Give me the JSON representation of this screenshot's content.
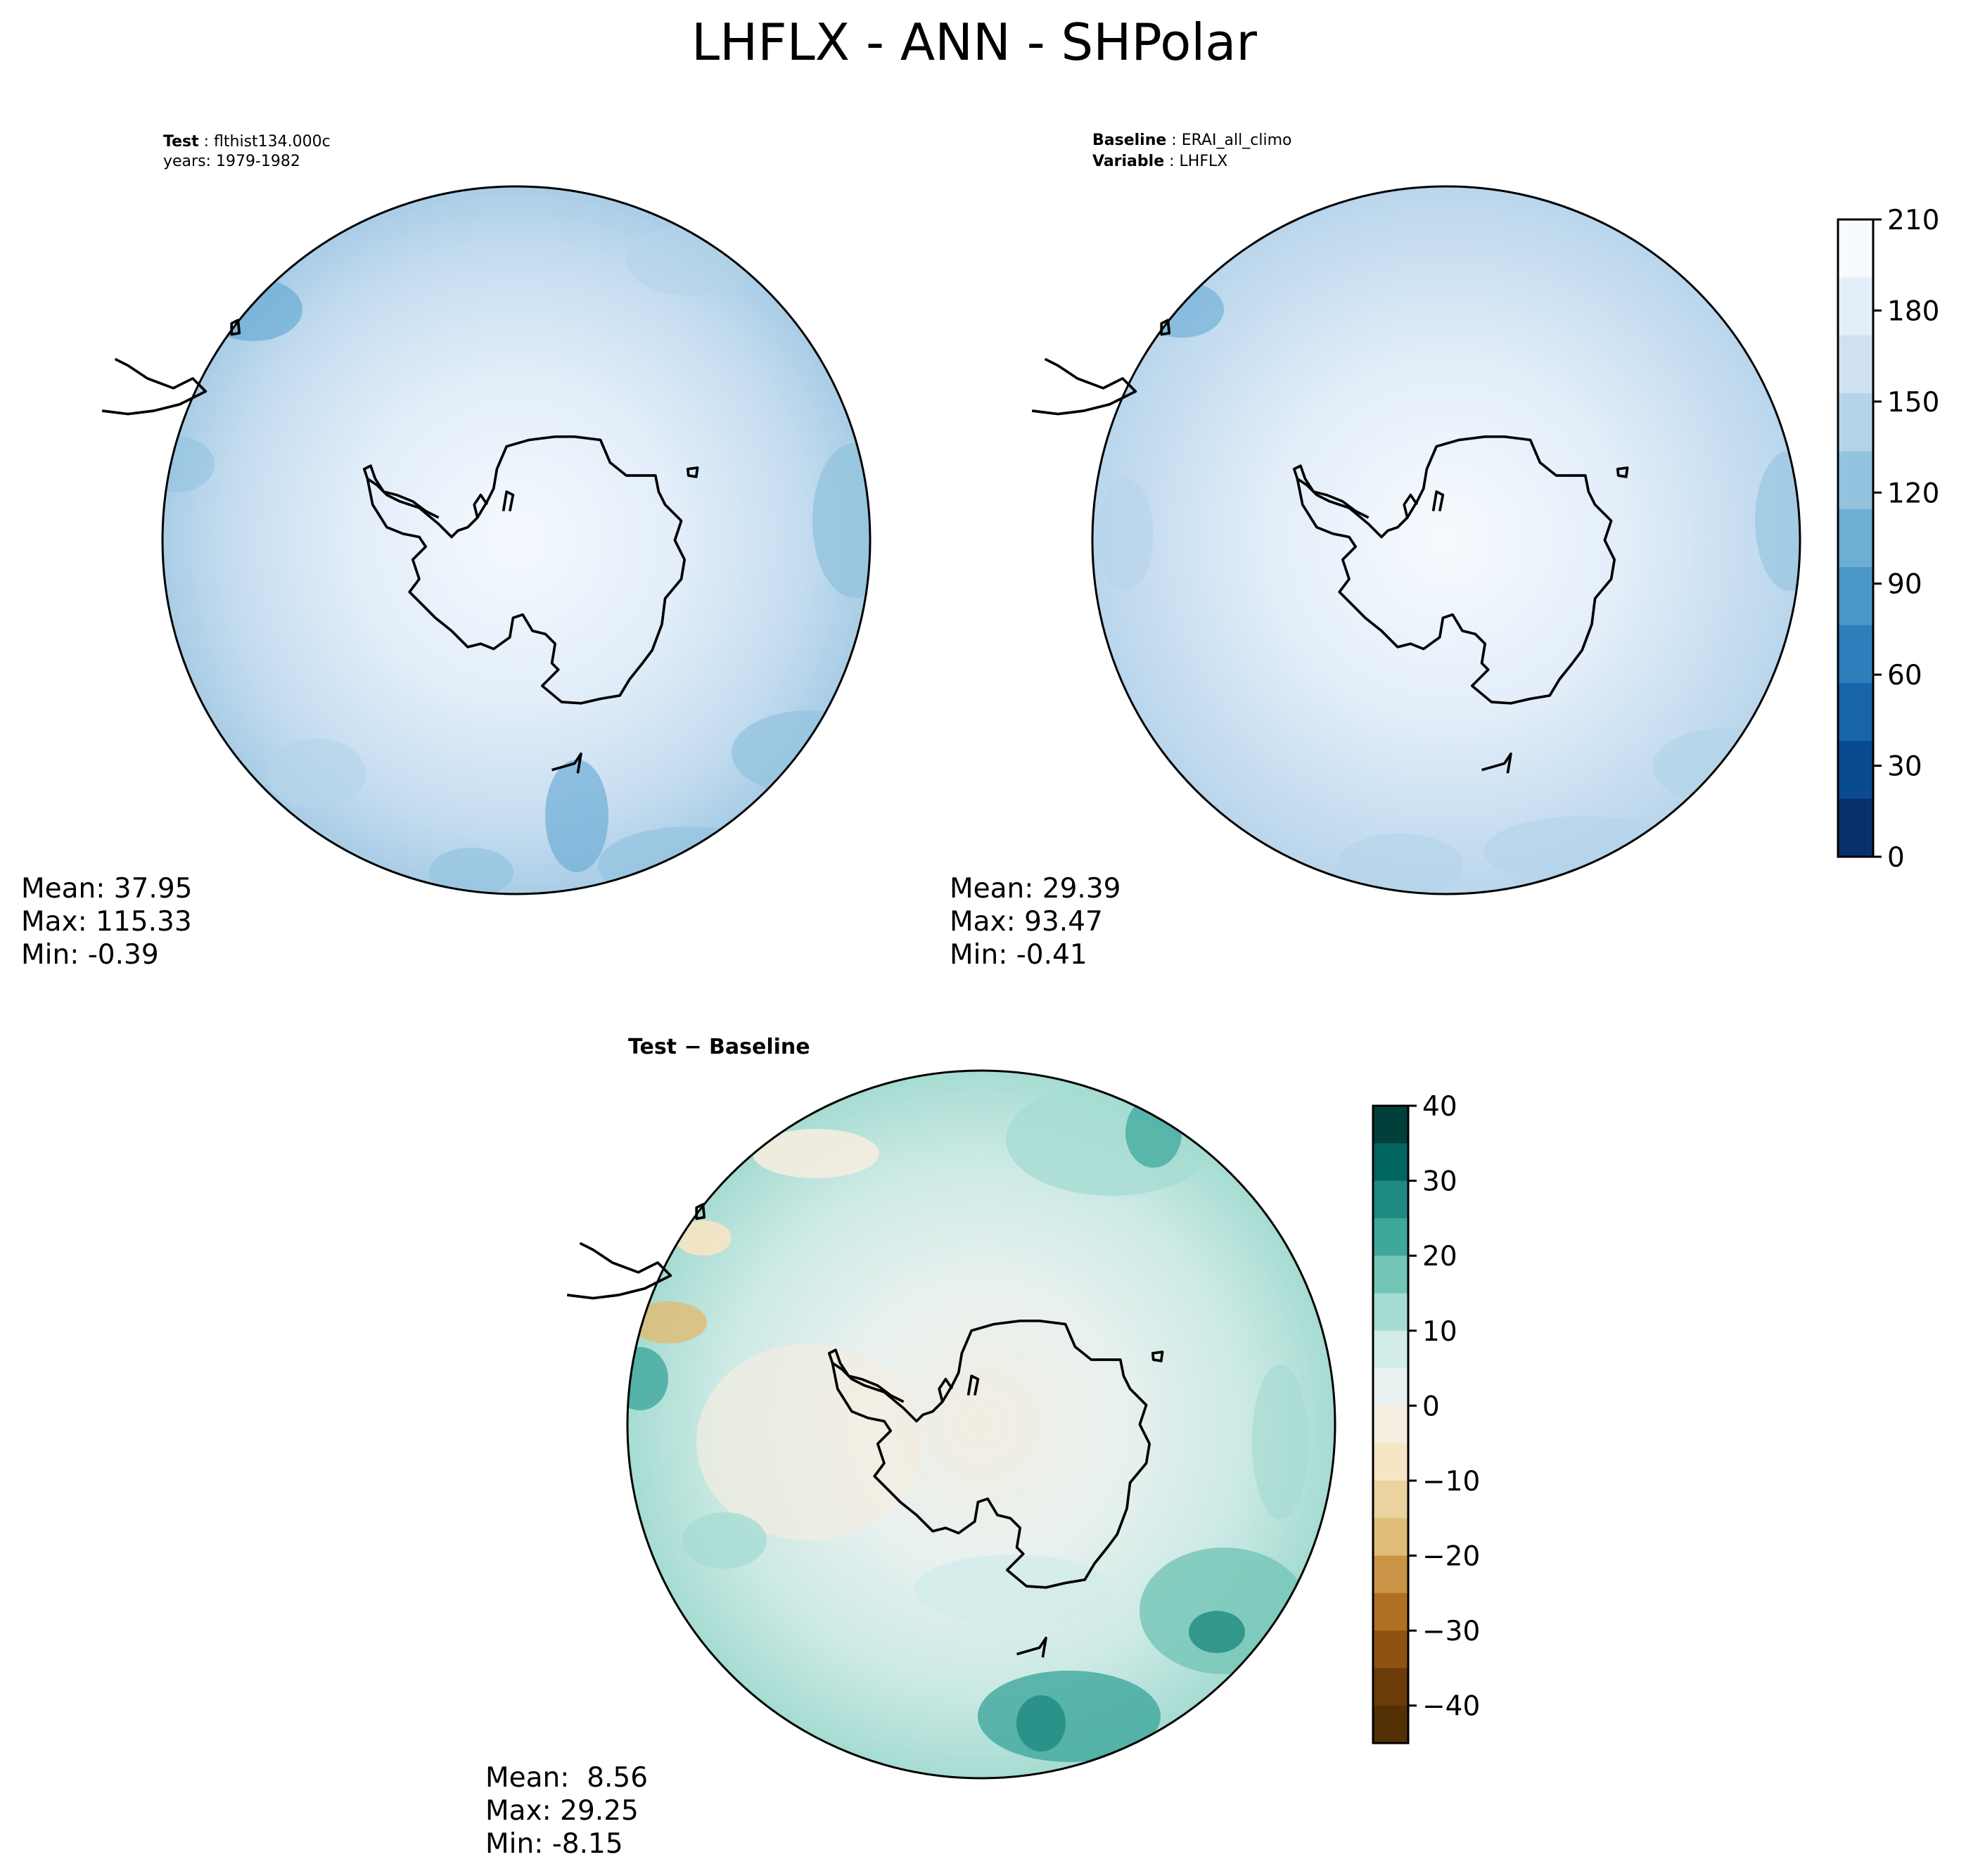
{
  "figure": {
    "title": "LHFLX - ANN - SHPolar"
  },
  "panels": {
    "test": {
      "label_key": "Test",
      "label_value": "flthist134.000c",
      "years": "years: 1979-1982",
      "stats": {
        "mean": "Mean: 37.95",
        "max": "Max: 115.33",
        "min": "Min: -0.39"
      }
    },
    "baseline": {
      "label_key": "Baseline",
      "label_value": "ERAI_all_climo",
      "variable_key": "Variable",
      "variable_value": "LHFLX",
      "stats": {
        "mean": "Mean: 29.39",
        "max": "Max: 93.47",
        "min": "Min: -0.41"
      }
    },
    "difference": {
      "title": "Test − Baseline",
      "stats": {
        "mean": "Mean:  8.56",
        "max": "Max: 29.25",
        "min": "Min: -8.15"
      }
    }
  },
  "colorbars": {
    "main": {
      "colormap": "Blues",
      "ticks": [
        "0",
        "30",
        "60",
        "90",
        "120",
        "150",
        "180",
        "210"
      ],
      "tick_values": [
        0,
        30,
        60,
        90,
        120,
        150,
        180,
        210
      ],
      "range": [
        0,
        210
      ],
      "colors": [
        "#f7fbff",
        "#e3eef9",
        "#cfe1f2",
        "#b5d4e9",
        "#93c3df",
        "#6daed5",
        "#4b97c9",
        "#2f7ebc",
        "#1864aa",
        "#0a4a90",
        "#08306b"
      ]
    },
    "diff": {
      "colormap": "BrBG",
      "ticks": [
        "40",
        "30",
        "20",
        "10",
        "0",
        "−10",
        "−20",
        "−30",
        "−40"
      ],
      "tick_values": [
        40,
        30,
        20,
        10,
        0,
        -10,
        -20,
        -30,
        -40
      ],
      "range": [
        -45,
        40
      ],
      "colors": [
        "#01403a",
        "#01665e",
        "#1f8a81",
        "#3ea89d",
        "#73c5b6",
        "#a6dcd2",
        "#d2ecea",
        "#e9f1f0",
        "#f4ede0",
        "#f6e6c4",
        "#ebd39f",
        "#dfbd78",
        "#c99446",
        "#b06f22",
        "#8e5210",
        "#6c3c08",
        "#543005"
      ]
    }
  }
}
